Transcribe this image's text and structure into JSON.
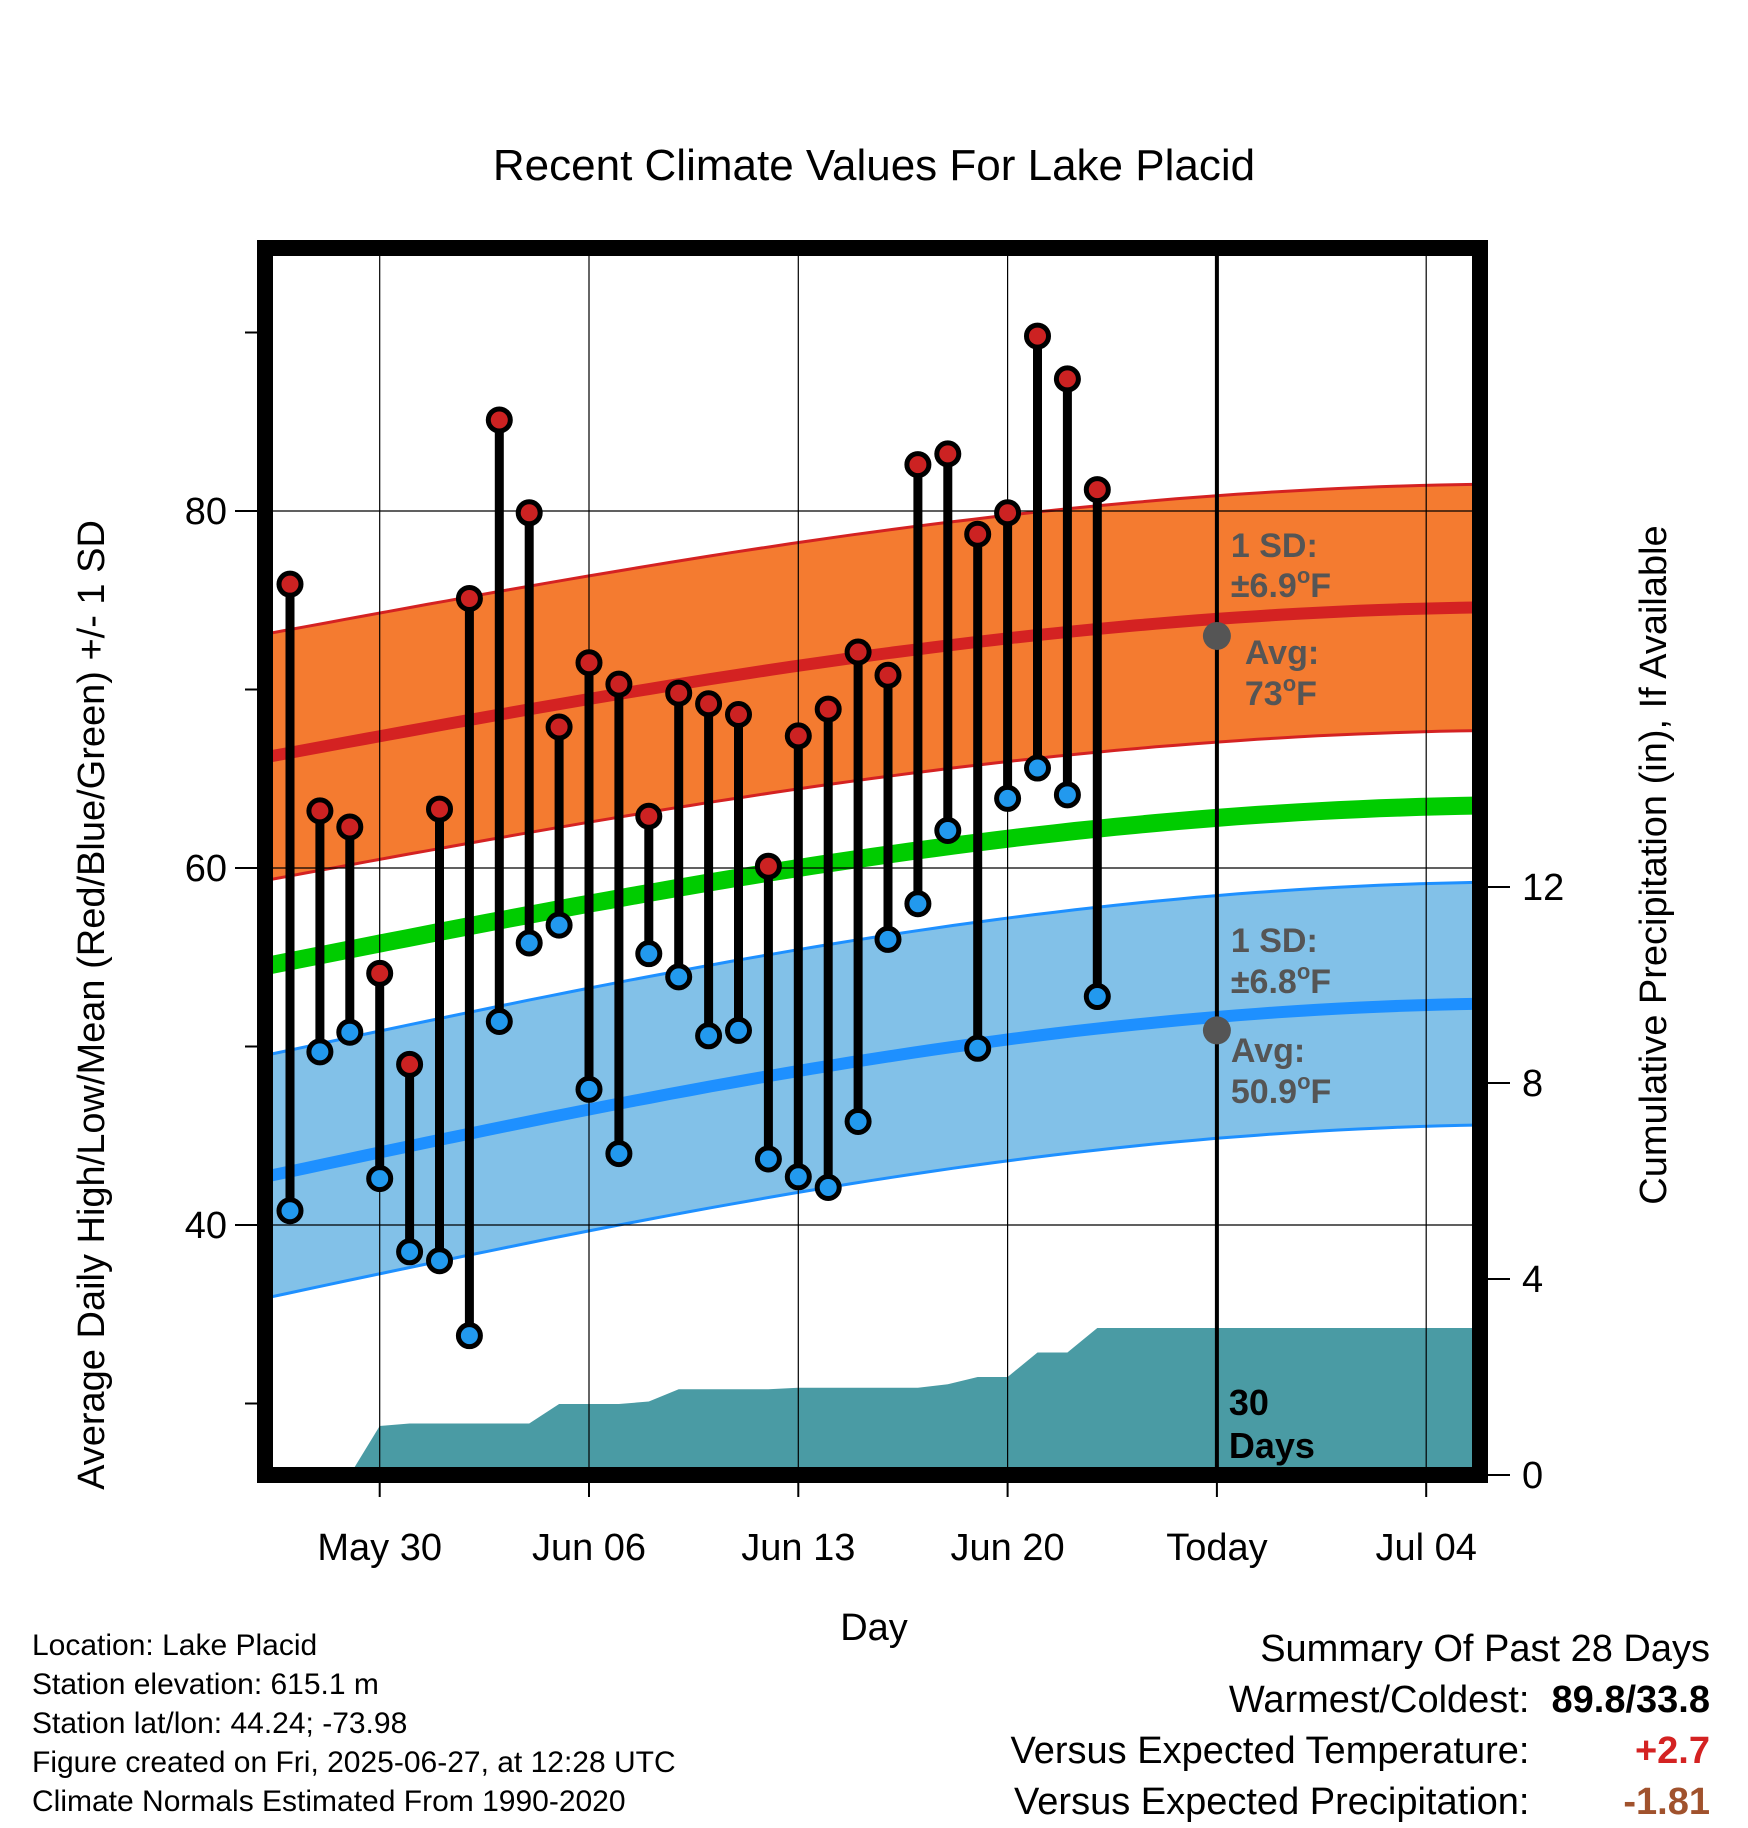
{
  "chart_data": {
    "type": "line",
    "title": "Recent Climate Values For Lake Placid",
    "xlabel": "Day",
    "ylabel": "Average Daily High/Low/Mean (Red/Blue/Green) +/- 1 SD",
    "y2label": "Cumulative Precipitation (in), If Available",
    "x_tick_labels": [
      "May 30",
      "Jun 06",
      "Jun 13",
      "Jun 20",
      "Today",
      "Jul 04"
    ],
    "y_ticks": [
      40,
      60,
      80
    ],
    "y2_ticks": [
      0,
      4,
      8,
      12
    ],
    "grid": true,
    "observed_highs": [
      75.9,
      63.2,
      62.3,
      54.1,
      49.0,
      63.3,
      75.1,
      85.1,
      79.9,
      67.9,
      71.5,
      70.3,
      62.9,
      69.8,
      69.2,
      68.6,
      60.1,
      67.4,
      68.9,
      72.1,
      70.8,
      82.6,
      83.2,
      78.7,
      79.9,
      89.8,
      87.4,
      81.2
    ],
    "observed_lows": [
      40.8,
      49.7,
      50.8,
      42.6,
      38.5,
      38.0,
      33.8,
      51.4,
      55.8,
      56.8,
      47.6,
      44.0,
      55.2,
      53.9,
      50.6,
      50.9,
      43.7,
      42.7,
      42.1,
      45.8,
      56.0,
      58.0,
      62.1,
      49.9,
      63.9,
      65.6,
      64.1,
      52.8
    ],
    "normal_high_avg": 73,
    "normal_high_sd": "±6.9",
    "normal_low_avg": 50.9,
    "normal_low_sd": "±6.8",
    "normal_high_start": 66.2,
    "normal_high_end": 74.6,
    "normal_low_start": 42.7,
    "normal_low_end": 52.4,
    "normal_mean_start": 54.5,
    "normal_mean_end": 63.5,
    "sd_high": 6.9,
    "sd_low": 6.8,
    "cumulative_precip": [
      0,
      0,
      0,
      1.0,
      1.05,
      1.05,
      1.05,
      1.05,
      1.05,
      1.45,
      1.45,
      1.45,
      1.5,
      1.75,
      1.75,
      1.75,
      1.75,
      1.78,
      1.78,
      1.78,
      1.78,
      1.78,
      1.85,
      2.0,
      2.0,
      2.5,
      2.5,
      3.0,
      3.0
    ],
    "today_label": "Today",
    "period_label": "30",
    "period_unit": "Days",
    "anno_high_sd_label": "1 SD:",
    "anno_high_sd_value": "±6.9",
    "anno_avg_label": "Avg:",
    "anno_high_avg_value": "73",
    "anno_low_sd_label": "1 SD:",
    "anno_low_sd_value": "±6.8",
    "anno_low_avg_value": "50.9",
    "unit_sup": "o",
    "unit_letter": "F",
    "colors": {
      "high_band": "#F47B30",
      "high_line": "#D42222",
      "low_band": "#82C1E8",
      "low_line": "#1E90FF",
      "mean_line": "#00CC00",
      "precip": "#4A9BA4",
      "high_dot": "#CC2222",
      "low_dot": "#2299EE",
      "today_dot": "#555555"
    }
  },
  "info": {
    "location": "Location: Lake Placid",
    "elevation": "Station elevation: 615.1 m",
    "latlon": "Station lat/lon: 44.24; -73.98",
    "created": "Figure created on Fri, 2025-06-27, at 12:28 UTC",
    "normals": "Climate Normals Estimated From 1990-2020"
  },
  "summary": {
    "heading": "Summary Of Past 28 Days",
    "warmest_coldest_label": "Warmest/Coldest:",
    "warmest_coldest_value": "89.8/33.8",
    "temp_label": "Versus Expected Temperature:",
    "temp_value": "+2.7",
    "temp_color": "#D42222",
    "precip_label": "Versus Expected Precipitation:",
    "precip_value": "-1.81",
    "precip_color": "#A0522D"
  }
}
